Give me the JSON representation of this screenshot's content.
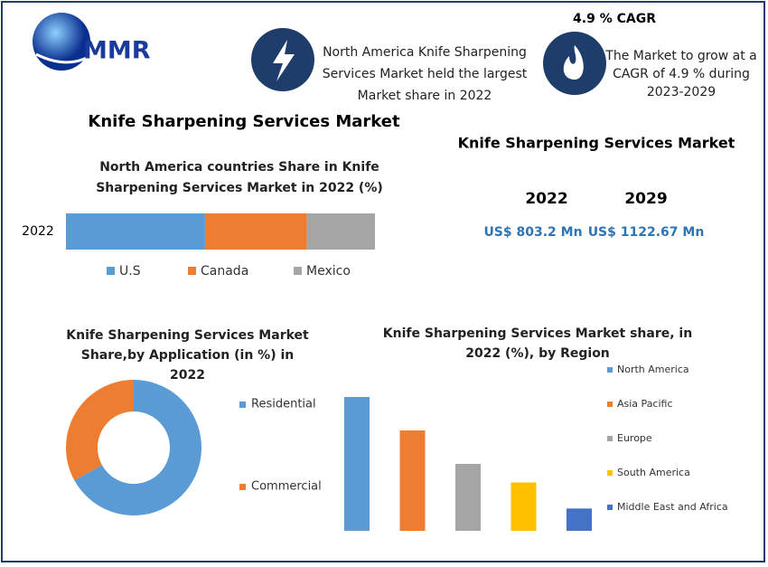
{
  "header": {
    "logo": "MMR",
    "title": "Knife Sharpening Services Market"
  },
  "highlights": [
    {
      "text": "North America Knife Sharpening Services Market held the largest Market share in 2022"
    },
    {
      "title": "4.9 % CAGR",
      "text": "The Market to grow at a CAGR of 4.9 % during 2023-2029"
    }
  ],
  "market_size": {
    "title": "Knife Sharpening Services Market",
    "years": [
      "2022",
      "2029"
    ],
    "values": [
      "US$ 803.2 Mn",
      "US$ 1122.67 Mn"
    ]
  },
  "chart_data": [
    {
      "type": "stacked_bar",
      "title": "North America countries Share in Knife Sharpening Services  Market in 2022 (%)",
      "categories": [
        "2022"
      ],
      "series": [
        {
          "name": "U.S",
          "color": "#5b9bd5",
          "values": [
            45
          ]
        },
        {
          "name": "Canada",
          "color": "#ed7d31",
          "values": [
            33
          ]
        },
        {
          "name": "Mexico",
          "color": "#a5a5a5",
          "values": [
            22
          ]
        }
      ]
    },
    {
      "type": "donut",
      "title": "Knife Sharpening Services Market Share,by Application (in %) in 2022",
      "categories": [
        "Residential",
        "Commercial"
      ],
      "values": [
        67,
        33
      ],
      "colors": [
        "#5b9bd5",
        "#ed7d31"
      ]
    },
    {
      "type": "bar",
      "title": "Knife Sharpening Services  Market share, in 2022 (%), by Region",
      "categories": [
        "North America",
        "Asia Pacific",
        "Europe",
        "South America",
        "Middle East and Africa"
      ],
      "values": [
        36,
        27,
        18,
        13,
        6
      ],
      "colors": [
        "#5b9bd5",
        "#ed7d31",
        "#a5a5a5",
        "#ffc000",
        "#4472c4"
      ]
    }
  ]
}
